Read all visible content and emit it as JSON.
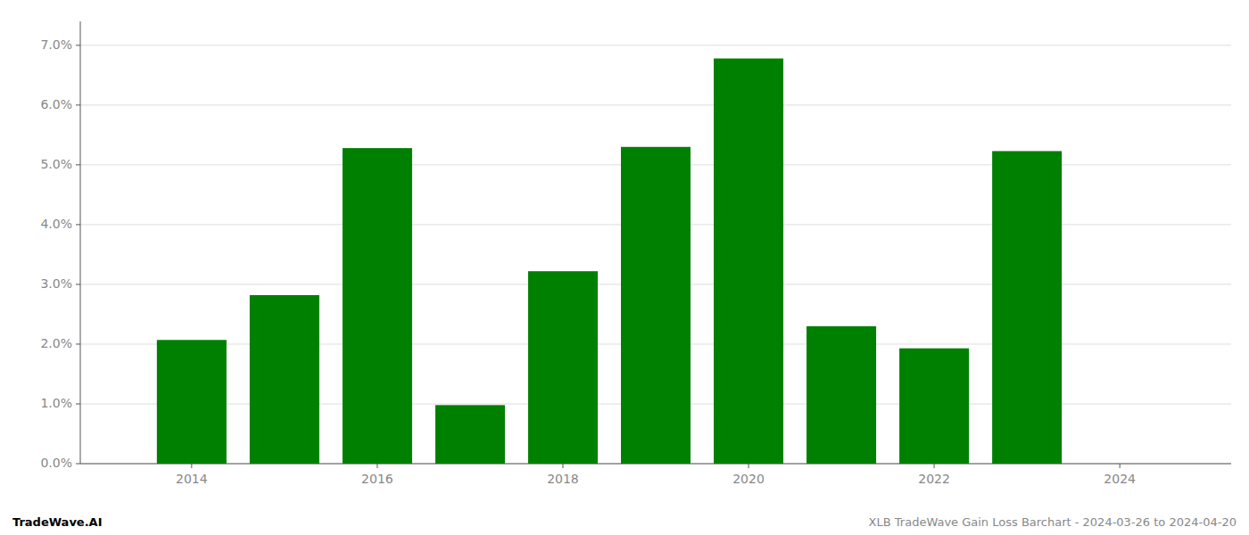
{
  "chart_data": {
    "type": "bar",
    "x": [
      2014,
      2015,
      2016,
      2017,
      2018,
      2019,
      2020,
      2021,
      2022,
      2023
    ],
    "values": [
      0.0207,
      0.0282,
      0.0528,
      0.0098,
      0.0322,
      0.053,
      0.0678,
      0.023,
      0.0193,
      0.0523
    ],
    "color": "#008000",
    "xlim": [
      2012.8,
      2025.2
    ],
    "xticks": [
      2014,
      2016,
      2018,
      2020,
      2022,
      2024
    ],
    "ylim": [
      0.0,
      0.074
    ],
    "yticks": [
      {
        "value": 0.0,
        "label": "0.0%"
      },
      {
        "value": 0.01,
        "label": "1.0%"
      },
      {
        "value": 0.02,
        "label": "2.0%"
      },
      {
        "value": 0.03,
        "label": "3.0%"
      },
      {
        "value": 0.04,
        "label": "4.0%"
      },
      {
        "value": 0.05,
        "label": "5.0%"
      },
      {
        "value": 0.06,
        "label": "6.0%"
      },
      {
        "value": 0.07,
        "label": "7.0%"
      }
    ],
    "grid": true,
    "annotations": [
      "TradeWave.AI",
      "XLB TradeWave Gain Loss Barchart - 2024-03-26 to 2024-04-20"
    ]
  }
}
